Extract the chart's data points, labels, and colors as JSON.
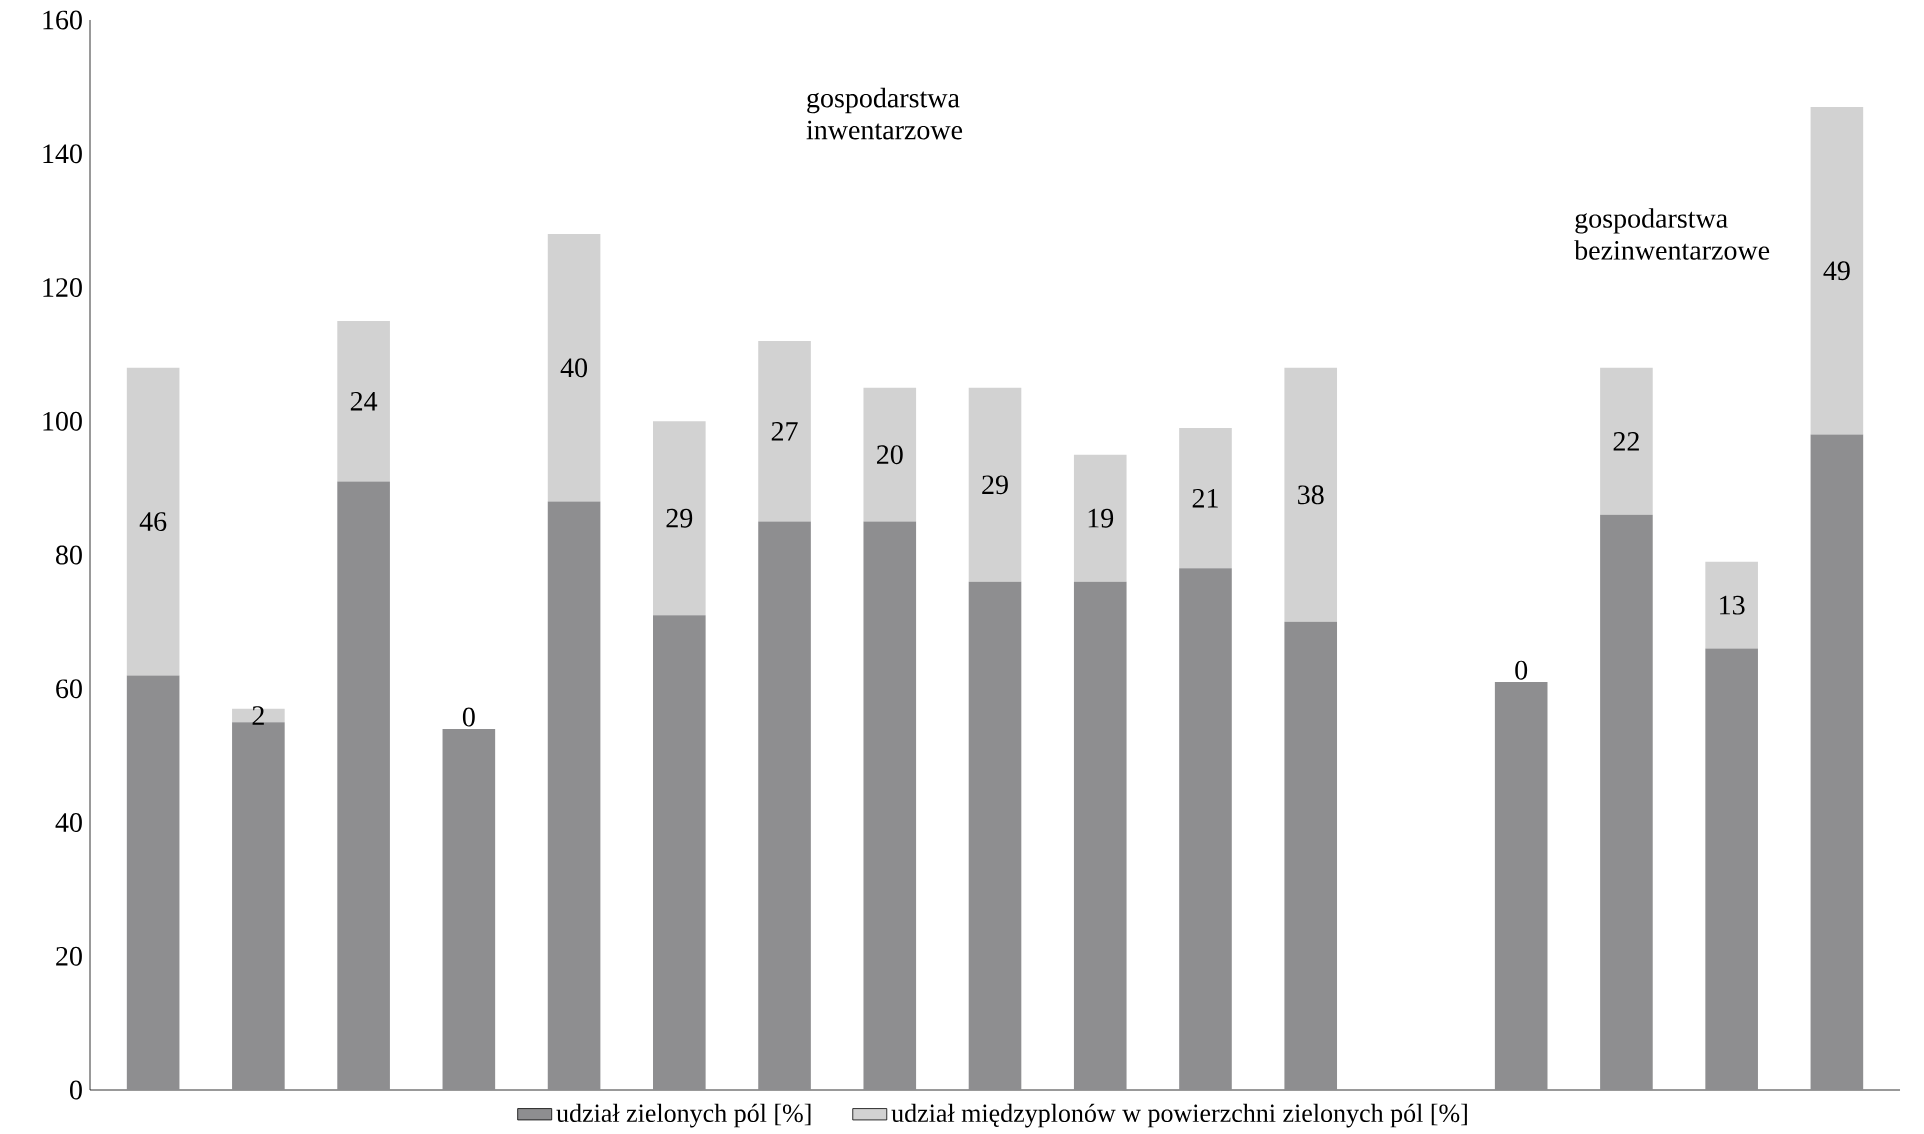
{
  "chart_data": {
    "type": "bar",
    "stacked": true,
    "categories": [
      null,
      null,
      null,
      null,
      null,
      null,
      null,
      null,
      null,
      null,
      null,
      null,
      null,
      null,
      null,
      null,
      null
    ],
    "series": [
      {
        "name": "udział zielonych pól [%]",
        "color": "#8e8e90",
        "values": [
          62,
          55,
          91,
          54,
          88,
          71,
          85,
          85,
          76,
          76,
          78,
          70,
          null,
          61,
          86,
          66,
          98
        ]
      },
      {
        "name": "udział międzyplonów w powierzchni zielonych pól [%]",
        "color": "#d2d2d2",
        "values": [
          46,
          2,
          24,
          0,
          40,
          29,
          27,
          20,
          29,
          19,
          21,
          38,
          null,
          0,
          22,
          13,
          49
        ],
        "value_labels": [
          "46",
          "2",
          "24",
          "0",
          "40",
          "29",
          "27",
          "20",
          "29",
          "19",
          "21",
          "38",
          null,
          "0",
          "22",
          "13",
          "49"
        ]
      }
    ],
    "ylim": [
      0,
      160
    ],
    "yticks": [
      0,
      20,
      40,
      60,
      80,
      100,
      120,
      140,
      160
    ],
    "legend": "bottom",
    "grid": false,
    "annotations": [
      "gospodarstwa inwentarzowe",
      "gospodarstwa bezinwentarzowe"
    ]
  }
}
